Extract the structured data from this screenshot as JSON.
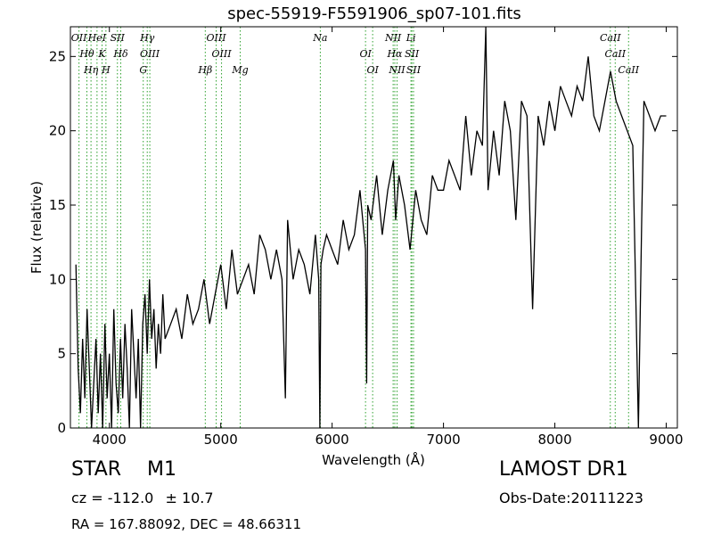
{
  "title": "spec-55919-F5591906_sp07-101.fits",
  "info": {
    "object_class": "STAR",
    "subclass": "M1",
    "cz_label": "cz = -112.0",
    "cz_err": "± 10.7",
    "coords": "RA = 167.88092, DEC = 48.66311",
    "survey": "LAMOST DR1",
    "obs_date": "Obs-Date:20111223"
  },
  "chart_data": {
    "type": "line",
    "title": "spec-55919-F5591906_sp07-101.fits",
    "xlabel": "Wavelength (Å)",
    "ylabel": "Flux (relative)",
    "xlim": [
      3650,
      9100
    ],
    "ylim": [
      0,
      27
    ],
    "x_ticks": [
      4000,
      5000,
      6000,
      7000,
      8000,
      9000
    ],
    "y_ticks": [
      0,
      5,
      10,
      15,
      20,
      25
    ],
    "grid": false,
    "line_color": "#000000",
    "marker_color": "#2ca02c",
    "series": [
      {
        "x": [
          3700,
          3720,
          3740,
          3760,
          3780,
          3800,
          3820,
          3840,
          3860,
          3880,
          3900,
          3920,
          3940,
          3960,
          3980,
          4000,
          4020,
          4040,
          4060,
          4080,
          4100,
          4120,
          4140,
          4160,
          4180,
          4200,
          4220,
          4240,
          4260,
          4280,
          4300,
          4320,
          4340,
          4360,
          4380,
          4400,
          4420,
          4440,
          4460,
          4480,
          4500,
          4550,
          4600,
          4650,
          4700,
          4750,
          4800,
          4850,
          4900,
          4950,
          5000,
          5050,
          5100,
          5150,
          5200,
          5250,
          5300,
          5350,
          5400,
          5450,
          5500,
          5550,
          5580,
          5600,
          5650,
          5700,
          5750,
          5800,
          5850,
          5880,
          5890,
          5900,
          5920,
          5950,
          6000,
          6050,
          6100,
          6150,
          6200,
          6250,
          6300,
          6310,
          6320,
          6350,
          6400,
          6450,
          6500,
          6550,
          6570,
          6600,
          6650,
          6700,
          6750,
          6800,
          6850,
          6900,
          6950,
          7000,
          7050,
          7100,
          7150,
          7200,
          7250,
          7300,
          7350,
          7380,
          7400,
          7450,
          7500,
          7550,
          7600,
          7650,
          7700,
          7750,
          7800,
          7850,
          7900,
          7950,
          8000,
          8050,
          8100,
          8150,
          8200,
          8250,
          8300,
          8350,
          8400,
          8450,
          8500,
          8550,
          8600,
          8650,
          8700,
          8750,
          8780,
          8800,
          8850,
          8900,
          8950,
          9000
        ],
        "y": [
          11,
          4,
          1,
          6,
          2,
          8,
          4,
          0,
          3,
          6,
          1,
          5,
          0,
          7,
          2,
          5,
          0,
          8,
          3,
          1,
          6,
          2,
          7,
          4,
          0,
          8,
          5,
          2,
          6,
          0,
          7,
          9,
          5,
          10,
          6,
          8,
          4,
          7,
          5,
          9,
          6,
          7,
          8,
          6,
          9,
          7,
          8,
          10,
          7,
          9,
          11,
          8,
          12,
          9,
          10,
          11,
          9,
          13,
          12,
          10,
          12,
          10,
          2,
          14,
          10,
          12,
          11,
          9,
          13,
          10,
          0,
          11,
          12,
          13,
          12,
          11,
          14,
          12,
          13,
          16,
          12,
          3,
          15,
          14,
          17,
          13,
          16,
          18,
          14,
          17,
          15,
          12,
          16,
          14,
          13,
          17,
          16,
          16,
          18,
          17,
          16,
          21,
          17,
          20,
          19,
          27,
          16,
          20,
          17,
          22,
          20,
          14,
          22,
          21,
          8,
          21,
          19,
          22,
          20,
          23,
          22,
          21,
          23,
          22,
          25,
          21,
          20,
          22,
          24,
          22,
          21,
          20,
          19,
          0,
          14,
          22,
          21,
          20,
          21,
          21
        ]
      }
    ],
    "annotations": [
      {
        "text": "OII",
        "x": 3727
      },
      {
        "text": "Hθ",
        "x": 3798
      },
      {
        "text": "Hη",
        "x": 3835
      },
      {
        "text": "HeI",
        "x": 3889
      },
      {
        "text": "K",
        "x": 3934
      },
      {
        "text": "H",
        "x": 3969
      },
      {
        "text": "SII",
        "x": 4072
      },
      {
        "text": "Hδ",
        "x": 4102
      },
      {
        "text": "G",
        "x": 4304
      },
      {
        "text": "Hγ",
        "x": 4340
      },
      {
        "text": "OIII",
        "x": 4363
      },
      {
        "text": "Hβ",
        "x": 4861
      },
      {
        "text": "OIII",
        "x": 4959
      },
      {
        "text": "OIII",
        "x": 5007
      },
      {
        "text": "Mg",
        "x": 5175
      },
      {
        "text": "Na",
        "x": 5894
      },
      {
        "text": "OI",
        "x": 6300
      },
      {
        "text": "OI",
        "x": 6364
      },
      {
        "text": "NII",
        "x": 6548
      },
      {
        "text": "Hα",
        "x": 6563
      },
      {
        "text": "NII",
        "x": 6583
      },
      {
        "text": "Li",
        "x": 6708
      },
      {
        "text": "SII",
        "x": 6716
      },
      {
        "text": "SII",
        "x": 6731
      },
      {
        "text": "CaII",
        "x": 8498
      },
      {
        "text": "CaII",
        "x": 8542
      },
      {
        "text": "CaII",
        "x": 8662
      }
    ]
  }
}
